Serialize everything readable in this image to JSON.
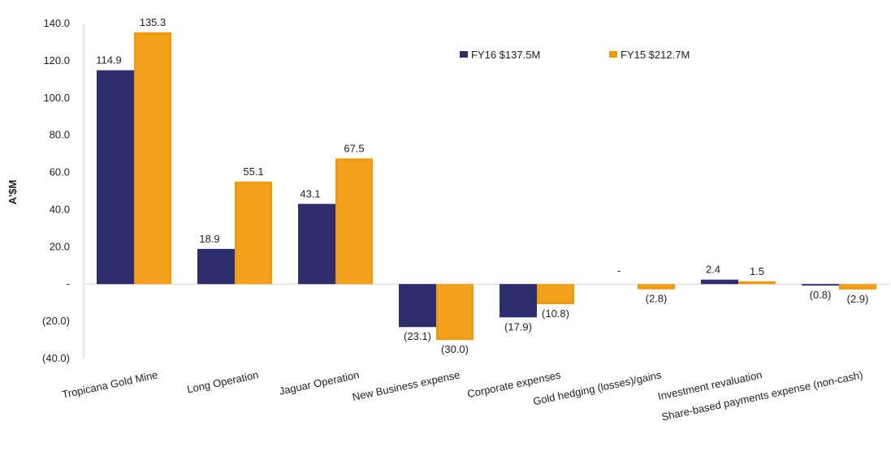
{
  "chart_data": {
    "type": "bar",
    "ylabel": "A'$M",
    "ylim": [
      -40,
      140
    ],
    "yticks": [
      {
        "value": 140,
        "label": "140.0"
      },
      {
        "value": 120,
        "label": "120.0"
      },
      {
        "value": 100,
        "label": "100.0"
      },
      {
        "value": 80,
        "label": "80.0"
      },
      {
        "value": 60,
        "label": "60.0"
      },
      {
        "value": 40,
        "label": "40.0"
      },
      {
        "value": 20,
        "label": "20.0"
      },
      {
        "value": 0,
        "label": "-"
      },
      {
        "value": -20,
        "label": "(20.0)"
      },
      {
        "value": -40,
        "label": "(40.0)"
      }
    ],
    "grid": false,
    "legend_position": "top-right",
    "categories": [
      "Tropicana Gold Mine",
      "Long Operation",
      "Jaguar Operation",
      "New Business expense",
      "Corporate expenses",
      "Gold hedging (losses)/gains",
      "Investment revaluation",
      "Share-based payments expense (non-cash)"
    ],
    "series": [
      {
        "name": "FY16 $137.5M",
        "color": "#2e2d6e",
        "values": [
          114.9,
          18.9,
          43.1,
          -23.1,
          -17.9,
          0,
          2.4,
          -0.8
        ],
        "labels": [
          "114.9",
          "18.9",
          "43.1",
          "(23.1)",
          "(17.9)",
          "-",
          "2.4",
          "(0.8)"
        ]
      },
      {
        "name": "FY15 $212.7M",
        "color": "#f29a0e",
        "values": [
          135.3,
          55.1,
          67.5,
          -30.0,
          -10.8,
          -2.8,
          1.5,
          -2.9
        ],
        "labels": [
          "135.3",
          "55.1",
          "67.5",
          "(30.0)",
          "(10.8)",
          "(2.8)",
          "1.5",
          "(2.9)"
        ]
      }
    ]
  }
}
